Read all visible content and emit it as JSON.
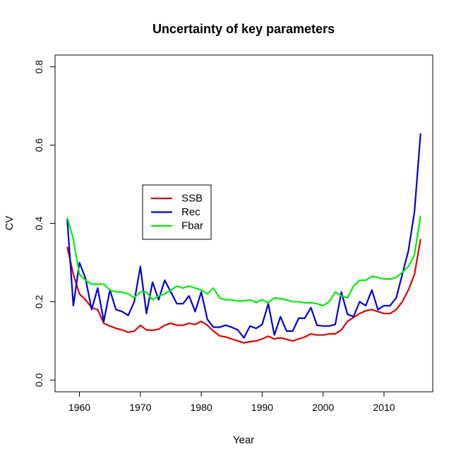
{
  "chart_data": {
    "type": "line",
    "title": "Uncertainty of key parameters",
    "xlabel": "Year",
    "ylabel": "CV",
    "xlim": [
      1956,
      2018
    ],
    "ylim": [
      0,
      0.8
    ],
    "x_ticks": [
      1960,
      1970,
      1980,
      1990,
      2000,
      2010
    ],
    "y_ticks": [
      0.0,
      0.2,
      0.4,
      0.6,
      0.8
    ],
    "x_tick_labels": [
      "1960",
      "1970",
      "1980",
      "1990",
      "2000",
      "2010"
    ],
    "y_tick_labels": [
      "0.0",
      "0.2",
      "0.4",
      "0.6",
      "0.8"
    ],
    "grid": false,
    "legend_position": "center-left",
    "x": [
      1958,
      1959,
      1960,
      1961,
      1962,
      1963,
      1964,
      1965,
      1966,
      1967,
      1968,
      1969,
      1970,
      1971,
      1972,
      1973,
      1974,
      1975,
      1976,
      1977,
      1978,
      1979,
      1980,
      1981,
      1982,
      1983,
      1984,
      1985,
      1986,
      1987,
      1988,
      1989,
      1990,
      1991,
      1992,
      1993,
      1994,
      1995,
      1996,
      1997,
      1998,
      1999,
      2000,
      2001,
      2002,
      2003,
      2004,
      2005,
      2006,
      2007,
      2008,
      2009,
      2010,
      2011,
      2012,
      2013,
      2014,
      2015,
      2016
    ],
    "series": [
      {
        "name": "SSB",
        "color": "#dd0000",
        "values": [
          0.34,
          0.27,
          0.22,
          0.205,
          0.185,
          0.18,
          0.145,
          0.138,
          0.132,
          0.128,
          0.122,
          0.125,
          0.14,
          0.128,
          0.127,
          0.13,
          0.14,
          0.145,
          0.14,
          0.14,
          0.145,
          0.142,
          0.15,
          0.14,
          0.125,
          0.113,
          0.11,
          0.105,
          0.1,
          0.095,
          0.098,
          0.1,
          0.105,
          0.112,
          0.105,
          0.108,
          0.104,
          0.1,
          0.105,
          0.11,
          0.118,
          0.115,
          0.115,
          0.118,
          0.118,
          0.128,
          0.15,
          0.16,
          0.17,
          0.177,
          0.18,
          0.175,
          0.17,
          0.17,
          0.18,
          0.2,
          0.23,
          0.27,
          0.36
        ]
      },
      {
        "name": "Rec",
        "color": "#0000dd",
        "values": [
          0.41,
          0.19,
          0.3,
          0.26,
          0.18,
          0.235,
          0.15,
          0.23,
          0.18,
          0.175,
          0.165,
          0.2,
          0.29,
          0.17,
          0.25,
          0.205,
          0.255,
          0.225,
          0.195,
          0.195,
          0.215,
          0.175,
          0.225,
          0.155,
          0.135,
          0.135,
          0.14,
          0.135,
          0.128,
          0.108,
          0.138,
          0.132,
          0.142,
          0.195,
          0.115,
          0.162,
          0.125,
          0.125,
          0.158,
          0.158,
          0.185,
          0.14,
          0.138,
          0.138,
          0.142,
          0.225,
          0.168,
          0.162,
          0.2,
          0.19,
          0.23,
          0.18,
          0.19,
          0.19,
          0.21,
          0.27,
          0.33,
          0.43,
          0.63
        ]
      },
      {
        "name": "Fbar",
        "color": "#00ee00",
        "values": [
          0.415,
          0.36,
          0.27,
          0.255,
          0.245,
          0.245,
          0.245,
          0.23,
          0.225,
          0.225,
          0.22,
          0.21,
          0.225,
          0.225,
          0.205,
          0.215,
          0.22,
          0.23,
          0.24,
          0.235,
          0.24,
          0.235,
          0.23,
          0.22,
          0.235,
          0.21,
          0.205,
          0.205,
          0.202,
          0.202,
          0.205,
          0.198,
          0.205,
          0.198,
          0.21,
          0.208,
          0.205,
          0.2,
          0.2,
          0.197,
          0.198,
          0.195,
          0.19,
          0.2,
          0.225,
          0.215,
          0.21,
          0.24,
          0.255,
          0.255,
          0.265,
          0.262,
          0.258,
          0.258,
          0.262,
          0.275,
          0.29,
          0.32,
          0.42
        ]
      }
    ]
  }
}
